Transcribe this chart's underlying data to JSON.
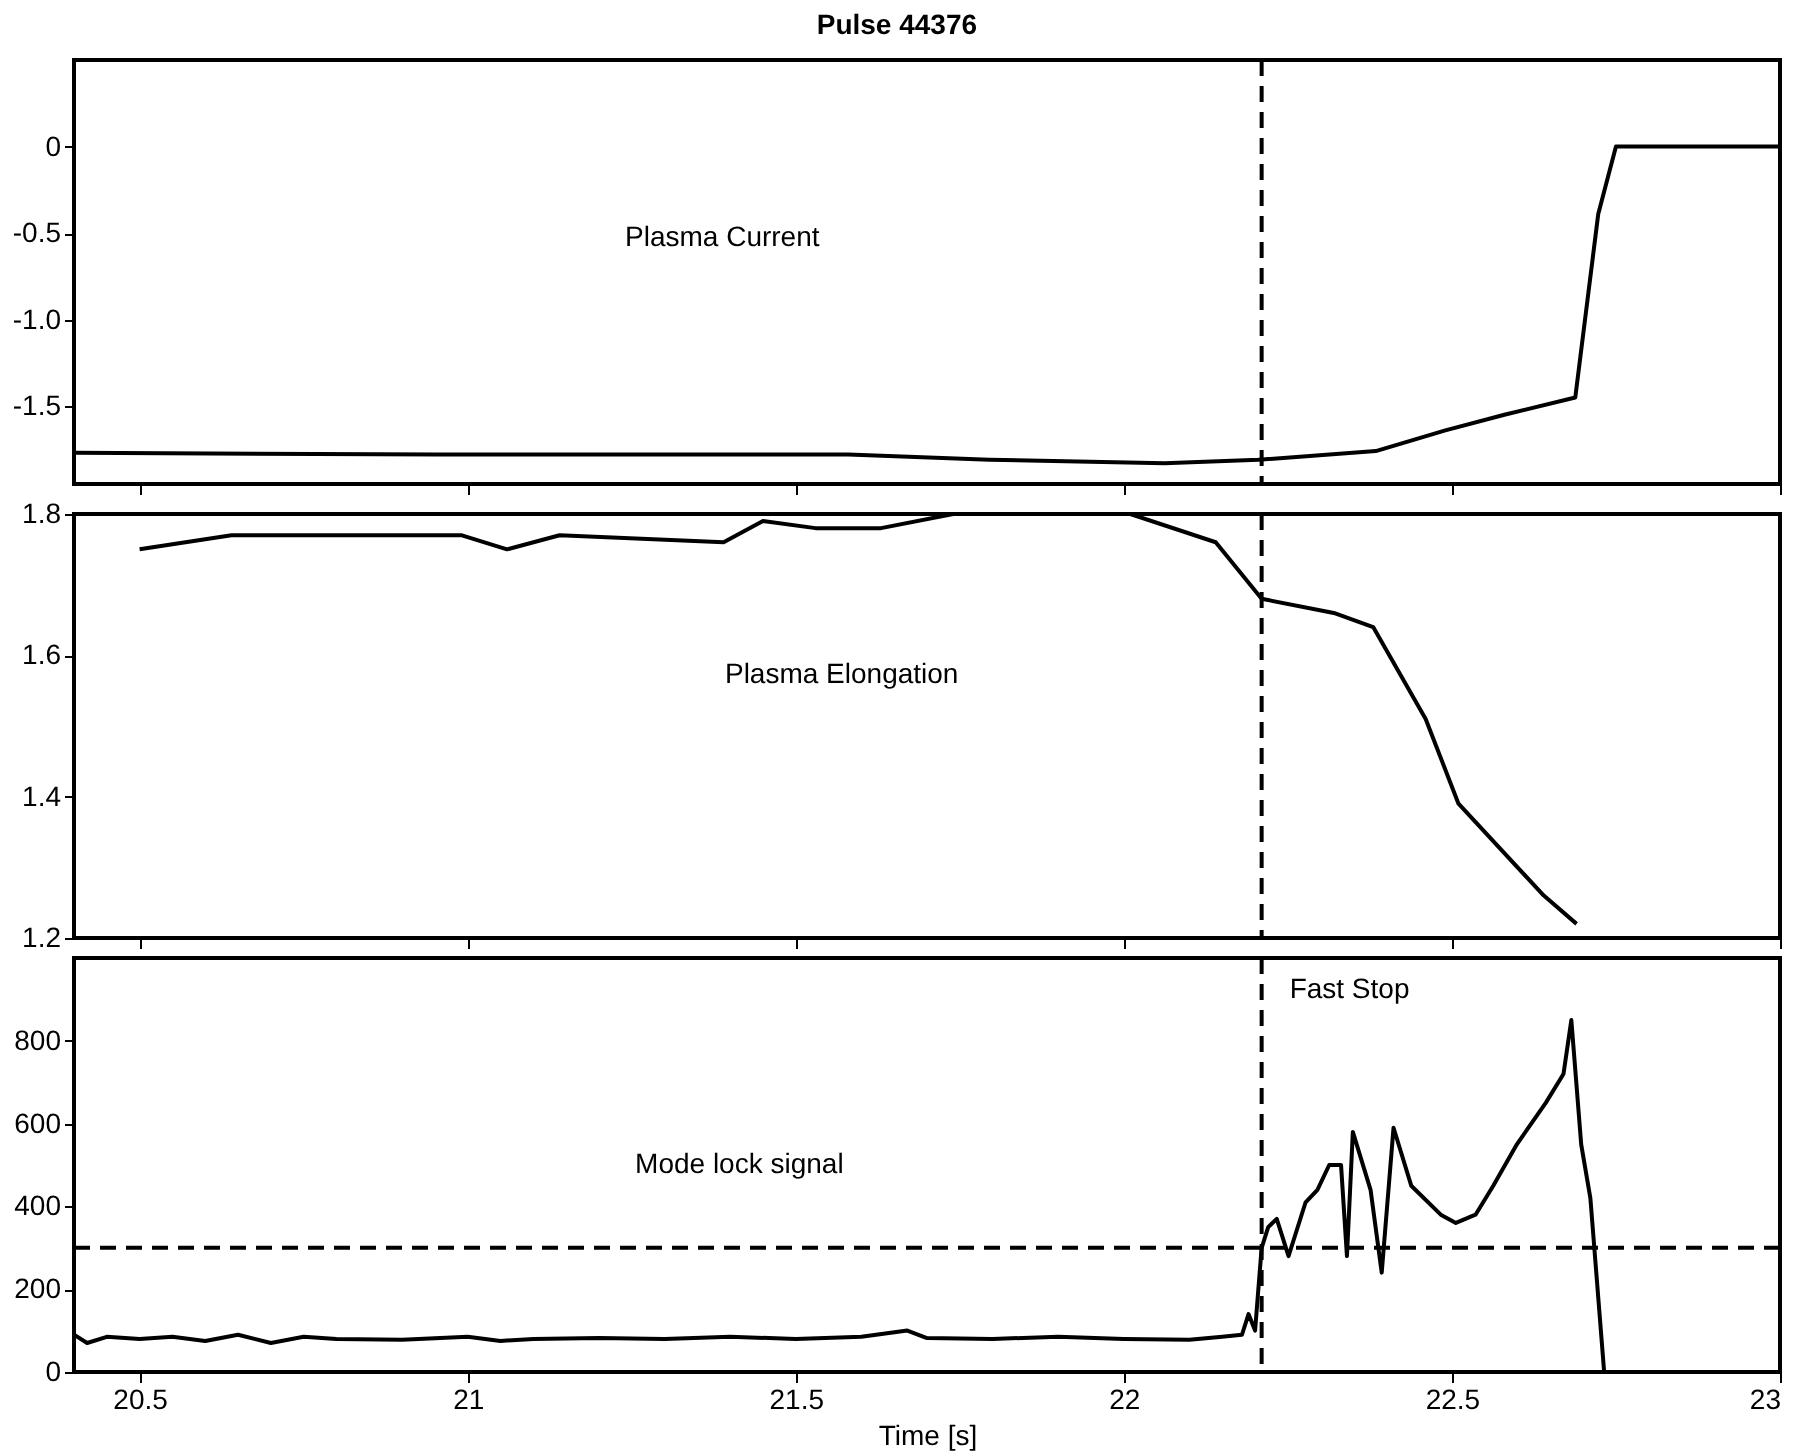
{
  "chart_data": [
    {
      "type": "line",
      "title": "Pulse 44376",
      "x": [
        20.4,
        20.955,
        21.58,
        21.795,
        22.062,
        22.205,
        22.384,
        22.49,
        22.58,
        22.688,
        22.723,
        22.75,
        23.0
      ],
      "series": [
        {
          "color": "#000000",
          "values": [
            -1.77,
            -1.78,
            -1.78,
            -1.81,
            -1.83,
            -1.81,
            -1.76,
            -1.64,
            -1.55,
            -1.45,
            -0.39,
            0,
            0
          ]
        }
      ],
      "xlim": [
        20.4,
        23
      ],
      "xticks": [
        20.5,
        21,
        21.5,
        22,
        22.5,
        23
      ],
      "ylim": [
        -1.95,
        0.5
      ],
      "yticks": [
        {
          "value": -1.5,
          "label": "-1.5"
        },
        {
          "value": -1,
          "label": "-1.0"
        },
        {
          "value": -0.5,
          "label": "-0.5"
        },
        0
      ],
      "ref_lines": [
        {
          "axis": "x",
          "value": 22.21,
          "line_style": "dashed",
          "color": "#000000"
        }
      ],
      "annotations": [
        "Plasma Current"
      ],
      "tick_labels": "y",
      "line_style": "solid"
    },
    {
      "type": "line",
      "x": [
        20.5,
        20.64,
        20.99,
        21.06,
        21.14,
        21.39,
        21.45,
        21.53,
        21.63,
        21.74,
        22.01,
        22.14,
        22.21,
        22.32,
        22.38,
        22.46,
        22.51,
        22.64,
        22.69
      ],
      "series": [
        {
          "color": "#000000",
          "values": [
            1.75,
            1.77,
            1.77,
            1.75,
            1.77,
            1.76,
            1.79,
            1.78,
            1.78,
            1.8,
            1.8,
            1.76,
            1.68,
            1.66,
            1.64,
            1.51,
            1.39,
            1.26,
            1.22
          ]
        }
      ],
      "xlim": [
        20.4,
        23
      ],
      "xticks": [
        20.5,
        21,
        21.5,
        22,
        22.5,
        23
      ],
      "ylim": [
        1.2,
        1.8
      ],
      "yticks": [
        1.2,
        1.4,
        1.6,
        1.8
      ],
      "ref_lines": [
        {
          "axis": "x",
          "value": 22.21,
          "line_style": "dashed",
          "color": "#000000"
        }
      ],
      "annotations": [
        "Plasma Elongation"
      ],
      "tick_labels": "y",
      "line_style": "solid"
    },
    {
      "type": "line",
      "xlabel": "Time [s]",
      "x": [
        20.4,
        20.42,
        20.45,
        20.5,
        20.55,
        20.6,
        20.65,
        20.7,
        20.75,
        20.8,
        20.9,
        21.0,
        21.05,
        21.1,
        21.2,
        21.3,
        21.4,
        21.5,
        21.6,
        21.67,
        21.7,
        21.8,
        21.9,
        22.0,
        22.1,
        22.15,
        22.18,
        22.19,
        22.2,
        22.21,
        22.22,
        22.233,
        22.251,
        22.277,
        22.295,
        22.313,
        22.331,
        22.34,
        22.349,
        22.376,
        22.393,
        22.411,
        22.438,
        22.483,
        22.506,
        22.536,
        22.563,
        22.599,
        22.643,
        22.67,
        22.682,
        22.697,
        22.711,
        22.732
      ],
      "series": [
        {
          "color": "#000000",
          "values": [
            90,
            70,
            85,
            80,
            85,
            75,
            90,
            70,
            85,
            80,
            78,
            85,
            75,
            80,
            82,
            80,
            85,
            80,
            85,
            100,
            82,
            80,
            85,
            80,
            78,
            85,
            90,
            140,
            100,
            300,
            350,
            370,
            280,
            410,
            440,
            500,
            500,
            280,
            580,
            440,
            240,
            590,
            450,
            380,
            360,
            380,
            450,
            550,
            650,
            720,
            850,
            550,
            420,
            0
          ]
        }
      ],
      "xlim": [
        20.4,
        23
      ],
      "xticks": [
        20.5,
        21,
        21.5,
        22,
        22.5,
        23
      ],
      "ylim": [
        0,
        1000
      ],
      "yticks": [
        0,
        200,
        400,
        600,
        800
      ],
      "ref_lines": [
        {
          "axis": "x",
          "value": 22.21,
          "label": "Fast Stop",
          "line_style": "dashed",
          "color": "#000000"
        },
        {
          "axis": "y",
          "value": 300,
          "line_style": "dashed",
          "color": "#000000"
        }
      ],
      "annotations": [
        "Mode lock signal"
      ],
      "line_style": "solid"
    }
  ]
}
